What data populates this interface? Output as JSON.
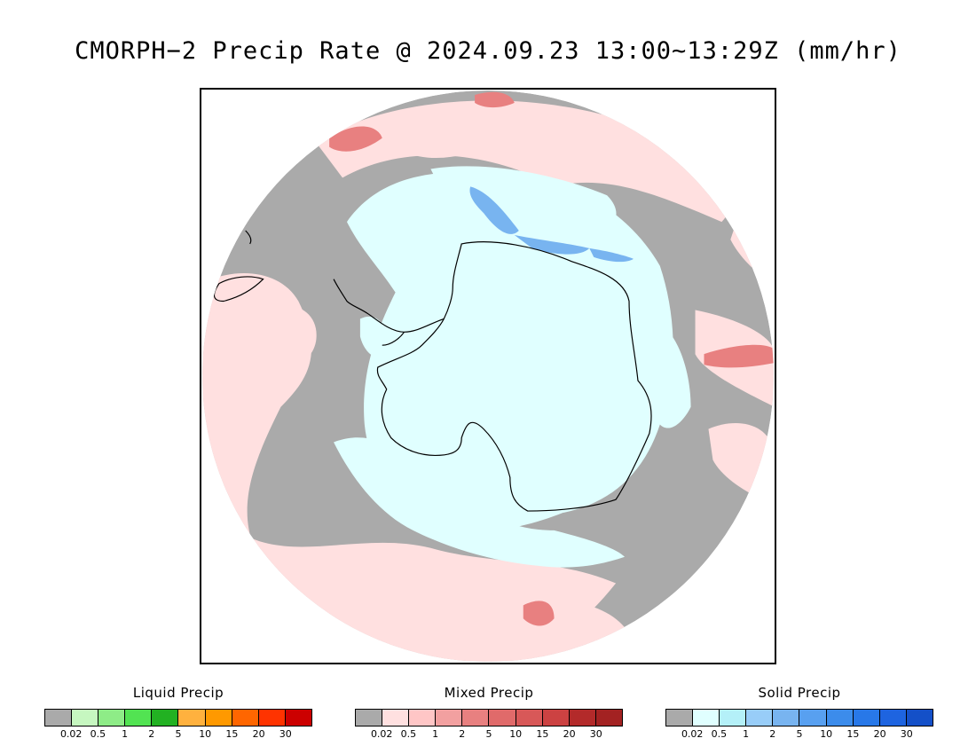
{
  "title": "CMORPH−2 Precip Rate @ 2024.09.23 13:00~13:29Z (mm/hr)",
  "map": {
    "projection": "south-polar-stereographic",
    "region": "Antarctica and Southern Ocean",
    "background_color": "#aaaaaa",
    "coastline_color": "#000000"
  },
  "legends": [
    {
      "key": "liquid",
      "title": "Liquid Precip",
      "colors": [
        "#aaaaaa",
        "#c6f7c0",
        "#8eec87",
        "#52e352",
        "#22b122",
        "#ffb13e",
        "#ff9900",
        "#ff6600",
        "#ff3300",
        "#cc0000"
      ],
      "ticks": [
        "0.02",
        "0.5",
        "1",
        "2",
        "5",
        "10",
        "15",
        "20",
        "30"
      ]
    },
    {
      "key": "mixed",
      "title": "Mixed Precip",
      "colors": [
        "#aaaaaa",
        "#ffe0e0",
        "#ffc6c6",
        "#f2a0a0",
        "#e88080",
        "#e06a6a",
        "#d85858",
        "#cc4242",
        "#b32a2a",
        "#a32222"
      ],
      "ticks": [
        "0.02",
        "0.5",
        "1",
        "2",
        "5",
        "10",
        "15",
        "20",
        "30"
      ]
    },
    {
      "key": "solid",
      "title": "Solid Precip",
      "colors": [
        "#aaaaaa",
        "#e0ffff",
        "#b4f0f8",
        "#98cdf8",
        "#78b4f0",
        "#58a0f0",
        "#3c8ceb",
        "#2878e8",
        "#1e64e0",
        "#1450c8"
      ],
      "ticks": [
        "0.02",
        "0.5",
        "1",
        "2",
        "5",
        "10",
        "15",
        "20",
        "30"
      ]
    }
  ]
}
